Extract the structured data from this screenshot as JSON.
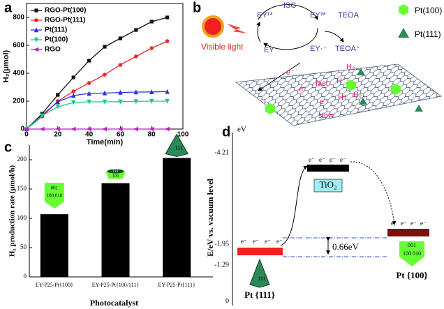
{
  "chart_data": [
    {
      "type": "line",
      "panel": "a",
      "xlabel": "Time(min)",
      "ylabel": "H₂(μmol)",
      "x": [
        0,
        10,
        20,
        30,
        40,
        50,
        60,
        70,
        80,
        90
      ],
      "xlim": [
        0,
        100
      ],
      "xticks": [
        0,
        20,
        40,
        60,
        80,
        100
      ],
      "ylim": [
        0,
        900
      ],
      "yticks": [
        0,
        200,
        400,
        600,
        800
      ],
      "legend": "upper left",
      "series": [
        {
          "name": "RGO-Pt(100)",
          "color": "#111111",
          "marker": "square",
          "values": [
            0,
            110,
            245,
            370,
            490,
            590,
            650,
            710,
            770,
            800
          ]
        },
        {
          "name": "RGO-Pt(111)",
          "color": "#f02828",
          "marker": "circle",
          "values": [
            0,
            90,
            200,
            270,
            330,
            390,
            460,
            520,
            580,
            630
          ]
        },
        {
          "name": "Pt(111)",
          "color": "#3030e0",
          "marker": "triangle",
          "values": [
            0,
            100,
            195,
            240,
            255,
            258,
            262,
            265,
            266,
            268
          ]
        },
        {
          "name": "Pt(100)",
          "color": "#20c890",
          "marker": "down-triangle",
          "values": [
            0,
            95,
            160,
            190,
            195,
            195,
            196,
            198,
            200,
            200
          ]
        },
        {
          "name": "RGO",
          "color": "#c020c0",
          "marker": "left-triangle",
          "values": [
            0,
            0,
            0,
            0,
            0,
            0,
            0,
            0,
            0,
            0
          ]
        }
      ]
    },
    {
      "type": "bar",
      "panel": "c",
      "xlabel": "Photocatalyst",
      "ylabel": "H₂ production rate (μmol/h)",
      "categories": [
        "EY-P25-Pt{100}",
        "EY-P25-Pt{100/111}",
        "EY-P25-Pt{111}"
      ],
      "values": [
        107,
        160,
        203
      ],
      "color": "#000000",
      "ylim": [
        0,
        225
      ],
      "yticks": [
        0,
        50,
        100,
        150,
        200
      ],
      "icon_labels": [
        [
          "001",
          "100 010"
        ],
        [
          "111",
          "100"
        ],
        [
          "111"
        ]
      ]
    }
  ],
  "panel_b": {
    "panel": "b",
    "texts": [
      "Visible light",
      "ISC",
      "EY¹*",
      "EY³*",
      "TEOA",
      "EY",
      "EY·⁻",
      "TEOA⁺",
      "e⁻",
      "e⁻",
      "fast",
      "H₂",
      "H₂",
      "e⁻",
      "H⁺",
      "H⁺",
      "slow"
    ],
    "legend": [
      "Pt(100)",
      "Pt(111)"
    ]
  },
  "panel_d": {
    "panel": "d",
    "axis_unit": "eV",
    "levels": [
      "-4.21",
      "-1.95",
      "-1.29",
      "0"
    ],
    "ylabel": "E/eV vs. vacuum level",
    "tio2": "TiO₂",
    "gap": "0.66eV",
    "electron": "e⁻",
    "pt111": "Pt {111}",
    "pt100": "Pt {100}",
    "icon111": "111",
    "icon100": [
      "001",
      "100 010"
    ]
  }
}
